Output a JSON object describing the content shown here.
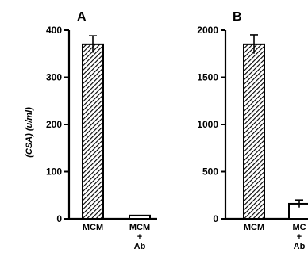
{
  "chart_data": [
    {
      "type": "bar",
      "panel_label": "A",
      "ylabel": "(CSA) (u/ml)",
      "ylim": [
        0,
        400
      ],
      "yticks": [
        0,
        100,
        200,
        300,
        400
      ],
      "categories": [
        [
          "MCM"
        ],
        [
          "MCM",
          "+",
          "Ab"
        ]
      ],
      "values": [
        370,
        7
      ],
      "errors": [
        18,
        0
      ],
      "fills": [
        "hatched",
        "white"
      ]
    },
    {
      "type": "bar",
      "panel_label": "B",
      "ylabel": "",
      "ylim": [
        0,
        2000
      ],
      "yticks": [
        0,
        500,
        1000,
        1500,
        2000
      ],
      "categories": [
        [
          "MCM"
        ],
        [
          "MC",
          "+",
          "Ab"
        ]
      ],
      "values": [
        1850,
        160
      ],
      "errors": [
        100,
        40
      ],
      "fills": [
        "hatched",
        "white"
      ]
    }
  ]
}
